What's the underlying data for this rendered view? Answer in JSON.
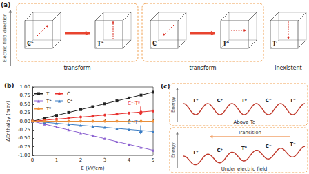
{
  "chart_data": {
    "type": "line",
    "title": "(b)",
    "x_label": "E (kV/cm)",
    "y_label": "ΔEnthalpy (mev)",
    "x": [
      0,
      0.5,
      1,
      1.5,
      2,
      2.5,
      3,
      3.5,
      4,
      4.5,
      5
    ],
    "series": [
      {
        "name": "T⁻",
        "color": "#222222",
        "marker": "square",
        "values": [
          0,
          0.085,
          0.17,
          0.255,
          0.34,
          0.425,
          0.51,
          0.595,
          0.68,
          0.765,
          0.85
        ]
      },
      {
        "name": "C⁻",
        "color": "#e8322f",
        "marker": "circle",
        "values": [
          0,
          0.03,
          0.06,
          0.09,
          0.12,
          0.15,
          0.18,
          0.21,
          0.24,
          0.27,
          0.3
        ]
      },
      {
        "name": "T⁺",
        "color": "#8a5fd0",
        "marker": "triangle",
        "values": [
          0,
          -0.085,
          -0.17,
          -0.255,
          -0.34,
          -0.425,
          -0.51,
          -0.595,
          -0.68,
          -0.765,
          -0.85
        ]
      },
      {
        "name": "C⁺",
        "color": "#3a7cc4",
        "marker": "triangle",
        "values": [
          0,
          -0.03,
          -0.06,
          -0.09,
          -0.12,
          -0.15,
          -0.18,
          -0.21,
          -0.24,
          -0.27,
          -0.3
        ]
      },
      {
        "name": "T⁰",
        "color": "#f0913a",
        "marker": "circle",
        "values": [
          0,
          0,
          0,
          0,
          0,
          0,
          0,
          0,
          0,
          0,
          0
        ]
      }
    ],
    "xlim": [
      0,
      5
    ],
    "xticks": [
      0,
      1,
      2,
      3,
      4,
      5
    ],
    "ylim": [
      -1,
      1
    ],
    "yticks": [
      {
        "value": -1,
        "label": "-1.00"
      },
      {
        "value": -0.75,
        "label": "-0.75"
      },
      {
        "value": -0.5,
        "label": "-0.50"
      },
      {
        "value": -0.25,
        "label": "-0.25"
      },
      {
        "value": 0,
        "label": "0.00"
      },
      {
        "value": 0.25,
        "label": "0.25"
      },
      {
        "value": 0.5,
        "label": "0.50"
      },
      {
        "value": 0.75,
        "label": "0.75"
      },
      {
        "value": 1,
        "label": "1.00"
      }
    ],
    "legend": "upper left",
    "grid": false,
    "annotations": [
      {
        "text": "C⁻-T⁰",
        "x": 4.2,
        "y": 0.45,
        "color": "#e8322f"
      },
      {
        "text": "C⁺-T⁺",
        "x": 4.2,
        "y": -0.1,
        "color": "#3a7cc4"
      }
    ]
  },
  "panel_a": {
    "label": "(a)",
    "axis_label": "Electric field direction",
    "groups": [
      {
        "from": "C⁺",
        "to": "T⁺",
        "caption": "transform"
      },
      {
        "from": "C⁻",
        "to": "T⁰",
        "caption": "transform"
      },
      {
        "state": "T⁻",
        "caption": "inexistent"
      }
    ]
  },
  "panel_c": {
    "label": "(c)",
    "energy_label": "Energy",
    "landscapes": [
      {
        "caption": "Above Tc",
        "wells": [
          "T⁺",
          "C⁺",
          "T⁰",
          "C⁻",
          "T⁻"
        ]
      },
      {
        "caption": "Under electric field",
        "wells": [
          "T⁺",
          "C⁺",
          "T⁰",
          "C⁻",
          "T⁻"
        ],
        "arrow_label": "Transition"
      }
    ]
  }
}
